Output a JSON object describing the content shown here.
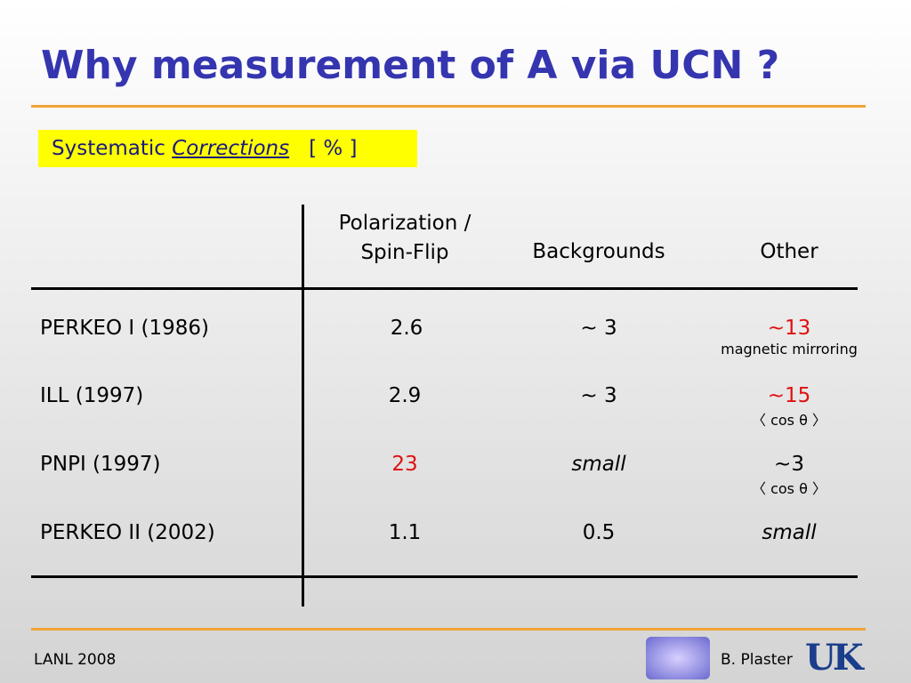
{
  "header": {
    "title": "Why measurement of A via UCN ?"
  },
  "subtitle": {
    "lead": "Systematic",
    "emphasis": "Corrections",
    "unit": "[ % ]"
  },
  "table": {
    "columns": [
      [
        "Polarization /",
        "Spin-Flip"
      ],
      [
        "Backgrounds"
      ],
      [
        "Other"
      ]
    ],
    "rows": [
      {
        "label": "PERKEO I (1986)",
        "cells": [
          {
            "text": 2.6
          },
          {
            "text": "~ 3"
          },
          {
            "text": "~13",
            "note": "magnetic mirroring"
          }
        ]
      },
      {
        "label": "ILL (1997)",
        "cells": [
          {
            "text": 2.9
          },
          {
            "text": "~ 3"
          },
          {
            "text": "~15",
            "note": "〈 cos θ 〉"
          }
        ]
      },
      {
        "label": "PNPI (1997)",
        "cells": [
          {
            "text": 23
          },
          {
            "text": "small"
          },
          {
            "text": "~3",
            "note": "〈 cos θ 〉"
          }
        ]
      },
      {
        "label": "PERKEO II (2002)",
        "cells": [
          {
            "text": 1.1
          },
          {
            "text": 0.5
          },
          {
            "text": "small"
          }
        ]
      }
    ]
  },
  "footer": {
    "left": "LANL 2008",
    "author": "B. Plaster",
    "logo": "UK"
  }
}
